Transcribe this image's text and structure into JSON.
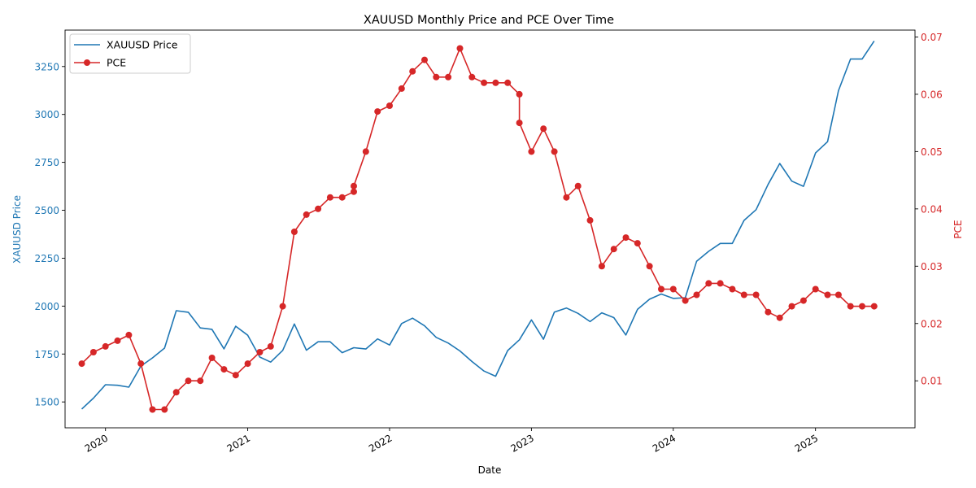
{
  "chart_data": {
    "type": "line",
    "title": "XAUUSD Monthly Price and PCE Over Time",
    "xlabel": "Date",
    "x_ticks": [
      "2020",
      "2021",
      "2022",
      "2023",
      "2024",
      "2025"
    ],
    "y_left": {
      "label": "XAUUSD Price",
      "ticks": [
        1500,
        1750,
        2000,
        2250,
        2500,
        2750,
        3000,
        3250
      ],
      "lim": [
        1365,
        3440
      ],
      "color": "#1f77b4"
    },
    "y_right": {
      "label": "PCE",
      "ticks": [
        "0.01",
        "0.02",
        "0.03",
        "0.04",
        "0.05",
        "0.06",
        "0.07"
      ],
      "lim": [
        0.0018,
        0.0712
      ],
      "color": "#d62728"
    },
    "legend": {
      "placement": "top-left",
      "entries": [
        "XAUUSD Price",
        "PCE"
      ]
    },
    "series": [
      {
        "name": "XAUUSD Price",
        "axis": "left",
        "color": "#1f77b4",
        "marker": "none",
        "points": [
          [
            "2019-11-01",
            1463
          ],
          [
            "2019-12-01",
            1520
          ],
          [
            "2020-01-01",
            1590
          ],
          [
            "2020-02-01",
            1587
          ],
          [
            "2020-03-01",
            1577
          ],
          [
            "2020-04-01",
            1687
          ],
          [
            "2020-05-01",
            1730
          ],
          [
            "2020-06-01",
            1781
          ],
          [
            "2020-07-01",
            1976
          ],
          [
            "2020-08-01",
            1968
          ],
          [
            "2020-09-01",
            1886
          ],
          [
            "2020-10-01",
            1879
          ],
          [
            "2020-11-01",
            1777
          ],
          [
            "2020-12-01",
            1895
          ],
          [
            "2021-01-01",
            1848
          ],
          [
            "2021-02-01",
            1734
          ],
          [
            "2021-03-01",
            1708
          ],
          [
            "2021-04-01",
            1769
          ],
          [
            "2021-05-01",
            1907
          ],
          [
            "2021-06-01",
            1770
          ],
          [
            "2021-07-01",
            1814
          ],
          [
            "2021-08-01",
            1814
          ],
          [
            "2021-09-01",
            1757
          ],
          [
            "2021-10-01",
            1783
          ],
          [
            "2021-11-01",
            1776
          ],
          [
            "2021-12-01",
            1829
          ],
          [
            "2022-01-01",
            1797
          ],
          [
            "2022-02-01",
            1909
          ],
          [
            "2022-03-01",
            1937
          ],
          [
            "2022-04-01",
            1897
          ],
          [
            "2022-05-01",
            1837
          ],
          [
            "2022-06-01",
            1807
          ],
          [
            "2022-07-01",
            1766
          ],
          [
            "2022-08-01",
            1711
          ],
          [
            "2022-09-01",
            1661
          ],
          [
            "2022-10-01",
            1634
          ],
          [
            "2022-11-01",
            1768
          ],
          [
            "2022-12-01",
            1824
          ],
          [
            "2023-01-01",
            1928
          ],
          [
            "2023-02-01",
            1827
          ],
          [
            "2023-03-01",
            1969
          ],
          [
            "2023-04-01",
            1990
          ],
          [
            "2023-05-01",
            1962
          ],
          [
            "2023-06-01",
            1919
          ],
          [
            "2023-07-01",
            1965
          ],
          [
            "2023-08-01",
            1940
          ],
          [
            "2023-09-01",
            1849
          ],
          [
            "2023-10-01",
            1983
          ],
          [
            "2023-11-01",
            2036
          ],
          [
            "2023-12-01",
            2063
          ],
          [
            "2024-01-01",
            2040
          ],
          [
            "2024-02-01",
            2044
          ],
          [
            "2024-03-01",
            2234
          ],
          [
            "2024-04-01",
            2286
          ],
          [
            "2024-05-01",
            2327
          ],
          [
            "2024-06-01",
            2327
          ],
          [
            "2024-07-01",
            2447
          ],
          [
            "2024-08-01",
            2503
          ],
          [
            "2024-09-01",
            2635
          ],
          [
            "2024-10-01",
            2744
          ],
          [
            "2024-11-01",
            2652
          ],
          [
            "2024-12-01",
            2625
          ],
          [
            "2025-01-01",
            2799
          ],
          [
            "2025-02-01",
            2858
          ],
          [
            "2025-03-01",
            3124
          ],
          [
            "2025-04-01",
            3289
          ],
          [
            "2025-05-01",
            3289
          ],
          [
            "2025-06-01",
            3383
          ]
        ]
      },
      {
        "name": "PCE",
        "axis": "right",
        "color": "#d62728",
        "marker": "circle",
        "points": [
          [
            "2019-11-01",
            0.013
          ],
          [
            "2019-12-01",
            0.015
          ],
          [
            "2020-01-01",
            0.016
          ],
          [
            "2020-02-01",
            0.017
          ],
          [
            "2020-03-01",
            0.018
          ],
          [
            "2020-04-01",
            0.013
          ],
          [
            "2020-05-01",
            0.005
          ],
          [
            "2020-06-01",
            0.005
          ],
          [
            "2020-07-01",
            0.008
          ],
          [
            "2020-08-01",
            0.01
          ],
          [
            "2020-09-01",
            0.01
          ],
          [
            "2020-10-01",
            0.014
          ],
          [
            "2020-11-01",
            0.012
          ],
          [
            "2020-12-01",
            0.011
          ],
          [
            "2021-01-01",
            0.013
          ],
          [
            "2021-02-01",
            0.015
          ],
          [
            "2021-03-01",
            0.016
          ],
          [
            "2021-04-01",
            0.023
          ],
          [
            "2021-05-01",
            0.036
          ],
          [
            "2021-06-01",
            0.039
          ],
          [
            "2021-07-01",
            0.04
          ],
          [
            "2021-08-01",
            0.042
          ],
          [
            "2021-09-01",
            0.042
          ],
          [
            "2021-10-01",
            0.043
          ],
          [
            "2021-10-01",
            0.044
          ],
          [
            "2021-11-01",
            0.05
          ],
          [
            "2021-12-01",
            0.057
          ],
          [
            "2022-01-01",
            0.058
          ],
          [
            "2022-02-01",
            0.061
          ],
          [
            "2022-03-01",
            0.064
          ],
          [
            "2022-04-01",
            0.066
          ],
          [
            "2022-05-01",
            0.063
          ],
          [
            "2022-06-01",
            0.063
          ],
          [
            "2022-07-01",
            0.068
          ],
          [
            "2022-08-01",
            0.063
          ],
          [
            "2022-09-01",
            0.062
          ],
          [
            "2022-10-01",
            0.062
          ],
          [
            "2022-11-01",
            0.062
          ],
          [
            "2022-12-01",
            0.06
          ],
          [
            "2022-12-01",
            0.055
          ],
          [
            "2023-01-01",
            0.05
          ],
          [
            "2023-02-01",
            0.054
          ],
          [
            "2023-03-01",
            0.05
          ],
          [
            "2023-04-01",
            0.042
          ],
          [
            "2023-05-01",
            0.044
          ],
          [
            "2023-06-01",
            0.038
          ],
          [
            "2023-07-01",
            0.03
          ],
          [
            "2023-08-01",
            0.033
          ],
          [
            "2023-09-01",
            0.035
          ],
          [
            "2023-10-01",
            0.034
          ],
          [
            "2023-11-01",
            0.03
          ],
          [
            "2023-12-01",
            0.026
          ],
          [
            "2024-01-01",
            0.026
          ],
          [
            "2024-02-01",
            0.024
          ],
          [
            "2024-03-01",
            0.025
          ],
          [
            "2024-04-01",
            0.027
          ],
          [
            "2024-05-01",
            0.027
          ],
          [
            "2024-06-01",
            0.026
          ],
          [
            "2024-07-01",
            0.025
          ],
          [
            "2024-08-01",
            0.025
          ],
          [
            "2024-09-01",
            0.022
          ],
          [
            "2024-10-01",
            0.021
          ],
          [
            "2024-11-01",
            0.023
          ],
          [
            "2024-12-01",
            0.024
          ],
          [
            "2025-01-01",
            0.026
          ],
          [
            "2025-02-01",
            0.025
          ],
          [
            "2025-03-01",
            0.025
          ],
          [
            "2025-04-01",
            0.023
          ],
          [
            "2025-05-01",
            0.023
          ],
          [
            "2025-06-01",
            0.023
          ]
        ]
      }
    ]
  }
}
